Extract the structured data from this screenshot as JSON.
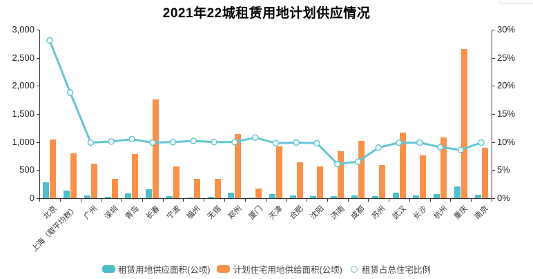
{
  "title": "2021年22城租赁用地计划供应情况",
  "colors": {
    "bar_rental": "#4dbecb",
    "bar_planned": "#f9914a",
    "line_ratio": "#62c6d4",
    "axis": "#333333",
    "text": "#333333"
  },
  "legend": {
    "items": [
      {
        "label": "租赁用地供应面积(公顷)",
        "symbol": "rect-teal"
      },
      {
        "label": "计划住宅用地供给面积(公顷)",
        "symbol": "rect-orange"
      },
      {
        "label": "租赁占总住宅比例",
        "symbol": "hollow-circle"
      }
    ]
  },
  "chart_data": {
    "type": "bar",
    "title": "2021年22城租赁用地计划供应情况",
    "categories": [
      "北京",
      "上海（取平均数）",
      "广州",
      "深圳",
      "青岛",
      "长春",
      "宁波",
      "福州",
      "无锡",
      "郑州",
      "厦门",
      "天津",
      "合肥",
      "沈阳",
      "济南",
      "成都",
      "苏州",
      "武汉",
      "长沙",
      "杭州",
      "重庆",
      "南京"
    ],
    "series": [
      {
        "name": "租赁用地供应面积(公顷)",
        "type": "bar",
        "axis": "left",
        "color": "#4dbecb",
        "values": [
          280,
          135,
          50,
          20,
          80,
          155,
          35,
          18,
          20,
          95,
          8,
          75,
          45,
          33,
          37,
          45,
          40,
          100,
          55,
          70,
          215,
          65
        ]
      },
      {
        "name": "计划住宅用地供给面积(公顷)",
        "type": "bar",
        "axis": "left",
        "color": "#f9914a",
        "values": [
          1040,
          800,
          615,
          350,
          785,
          1760,
          560,
          345,
          340,
          1145,
          175,
          925,
          640,
          565,
          840,
          1025,
          585,
          1170,
          765,
          1080,
          2660,
          900
        ]
      },
      {
        "name": "租赁占总住宅比例",
        "type": "line",
        "axis": "right",
        "color": "#62c6d4",
        "values": [
          28.1,
          18.8,
          9.9,
          10.1,
          10.5,
          9.9,
          10.0,
          10.2,
          10.0,
          10.0,
          10.8,
          9.8,
          9.9,
          9.8,
          6.1,
          6.5,
          9.0,
          9.9,
          9.9,
          9.1,
          8.6,
          9.9
        ]
      }
    ],
    "left_axis": {
      "min": 0,
      "max": 3000,
      "step": 500,
      "tick_labels": [
        "0",
        "500",
        "1,000",
        "1,500",
        "2,000",
        "2,500",
        "3,000"
      ]
    },
    "right_axis": {
      "min": 0,
      "max": 30,
      "step": 5,
      "tick_labels": [
        "0%",
        "5%",
        "10%",
        "15%",
        "20%",
        "25%",
        "30%"
      ]
    },
    "grid": false,
    "legend_position": "bottom",
    "x_label_rotation": -45
  }
}
